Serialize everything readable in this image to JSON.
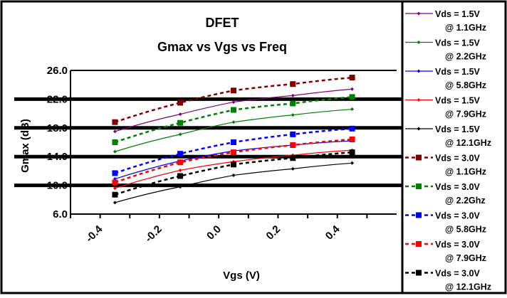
{
  "chart_data": {
    "type": "line",
    "title": "DFET",
    "subtitle": "Gmax vs Vgs vs Freq",
    "xlabel": "Vgs (V)",
    "ylabel": "Gmax (dB)",
    "xlim": [
      -0.5,
      0.6
    ],
    "ylim": [
      6.0,
      26.0
    ],
    "xticks": [
      "-0.4",
      "-0.2",
      "0.0",
      "0.2",
      "0.4"
    ],
    "xtick_values": [
      -0.4,
      -0.2,
      0.0,
      0.2,
      0.4
    ],
    "yticks": [
      "26.0",
      "22.0",
      "18.0",
      "14.0",
      "10.0",
      "6.0"
    ],
    "ytick_values": [
      26,
      22,
      18,
      14,
      10,
      6
    ],
    "grid": "horizontal",
    "legend_position": "right",
    "x": [
      -0.35,
      -0.13,
      0.05,
      0.25,
      0.45
    ],
    "series": [
      {
        "name": "Vds = 1.5V",
        "freq": "@ 1.1GHz",
        "color": "#800080",
        "style": "solid",
        "marker": "diamond",
        "values": [
          17.5,
          19.9,
          21.6,
          22.5,
          23.4
        ]
      },
      {
        "name": "Vds = 1.5V",
        "freq": "@ 2.2GHz",
        "color": "#008000",
        "style": "solid",
        "marker": "diamond",
        "values": [
          14.7,
          17.1,
          18.8,
          19.8,
          20.6
        ]
      },
      {
        "name": "Vds = 1.5V",
        "freq": "@ 5.8GHz",
        "color": "#0000ff",
        "style": "solid",
        "marker": "diamond",
        "values": [
          10.9,
          13.4,
          14.8,
          15.6,
          16.2
        ]
      },
      {
        "name": "Vds = 1.5V",
        "freq": "@ 7.9GHz",
        "color": "#ff0000",
        "style": "solid",
        "marker": "diamond",
        "values": [
          9.6,
          12.1,
          13.3,
          14.2,
          14.9
        ]
      },
      {
        "name": "Vds = 1.5V",
        "freq": "@ 12.1GHz",
        "color": "#000000",
        "style": "solid",
        "marker": "diamond",
        "values": [
          7.6,
          9.8,
          11.4,
          12.3,
          13.1
        ]
      },
      {
        "name": "Vds = 3.0V",
        "freq": "@ 1.1GHz",
        "color": "#800000",
        "style": "dashed",
        "marker": "square",
        "values": [
          18.8,
          21.5,
          23.2,
          24.1,
          25.0
        ]
      },
      {
        "name": "Vds = 3.0V",
        "freq": "@ 2.2Ghz",
        "color": "#008000",
        "style": "dashed",
        "marker": "square",
        "values": [
          16.0,
          18.7,
          20.5,
          21.4,
          22.3
        ]
      },
      {
        "name": "Vds = 3.0V",
        "freq": "@ 5.8GHz",
        "color": "#0000ff",
        "style": "dashed",
        "marker": "square",
        "values": [
          11.7,
          14.4,
          16.0,
          17.1,
          17.9
        ]
      },
      {
        "name": "Vds = 3.0V",
        "freq": "@ 7.9GHz",
        "color": "#ff0000",
        "style": "dashed",
        "marker": "square",
        "values": [
          10.4,
          13.2,
          14.6,
          15.6,
          16.4
        ]
      },
      {
        "name": "Vds = 3.0V",
        "freq": "@ 12.1GHz",
        "color": "#000000",
        "style": "dashed",
        "marker": "square",
        "values": [
          8.7,
          11.3,
          12.9,
          13.8,
          14.6
        ]
      }
    ]
  }
}
